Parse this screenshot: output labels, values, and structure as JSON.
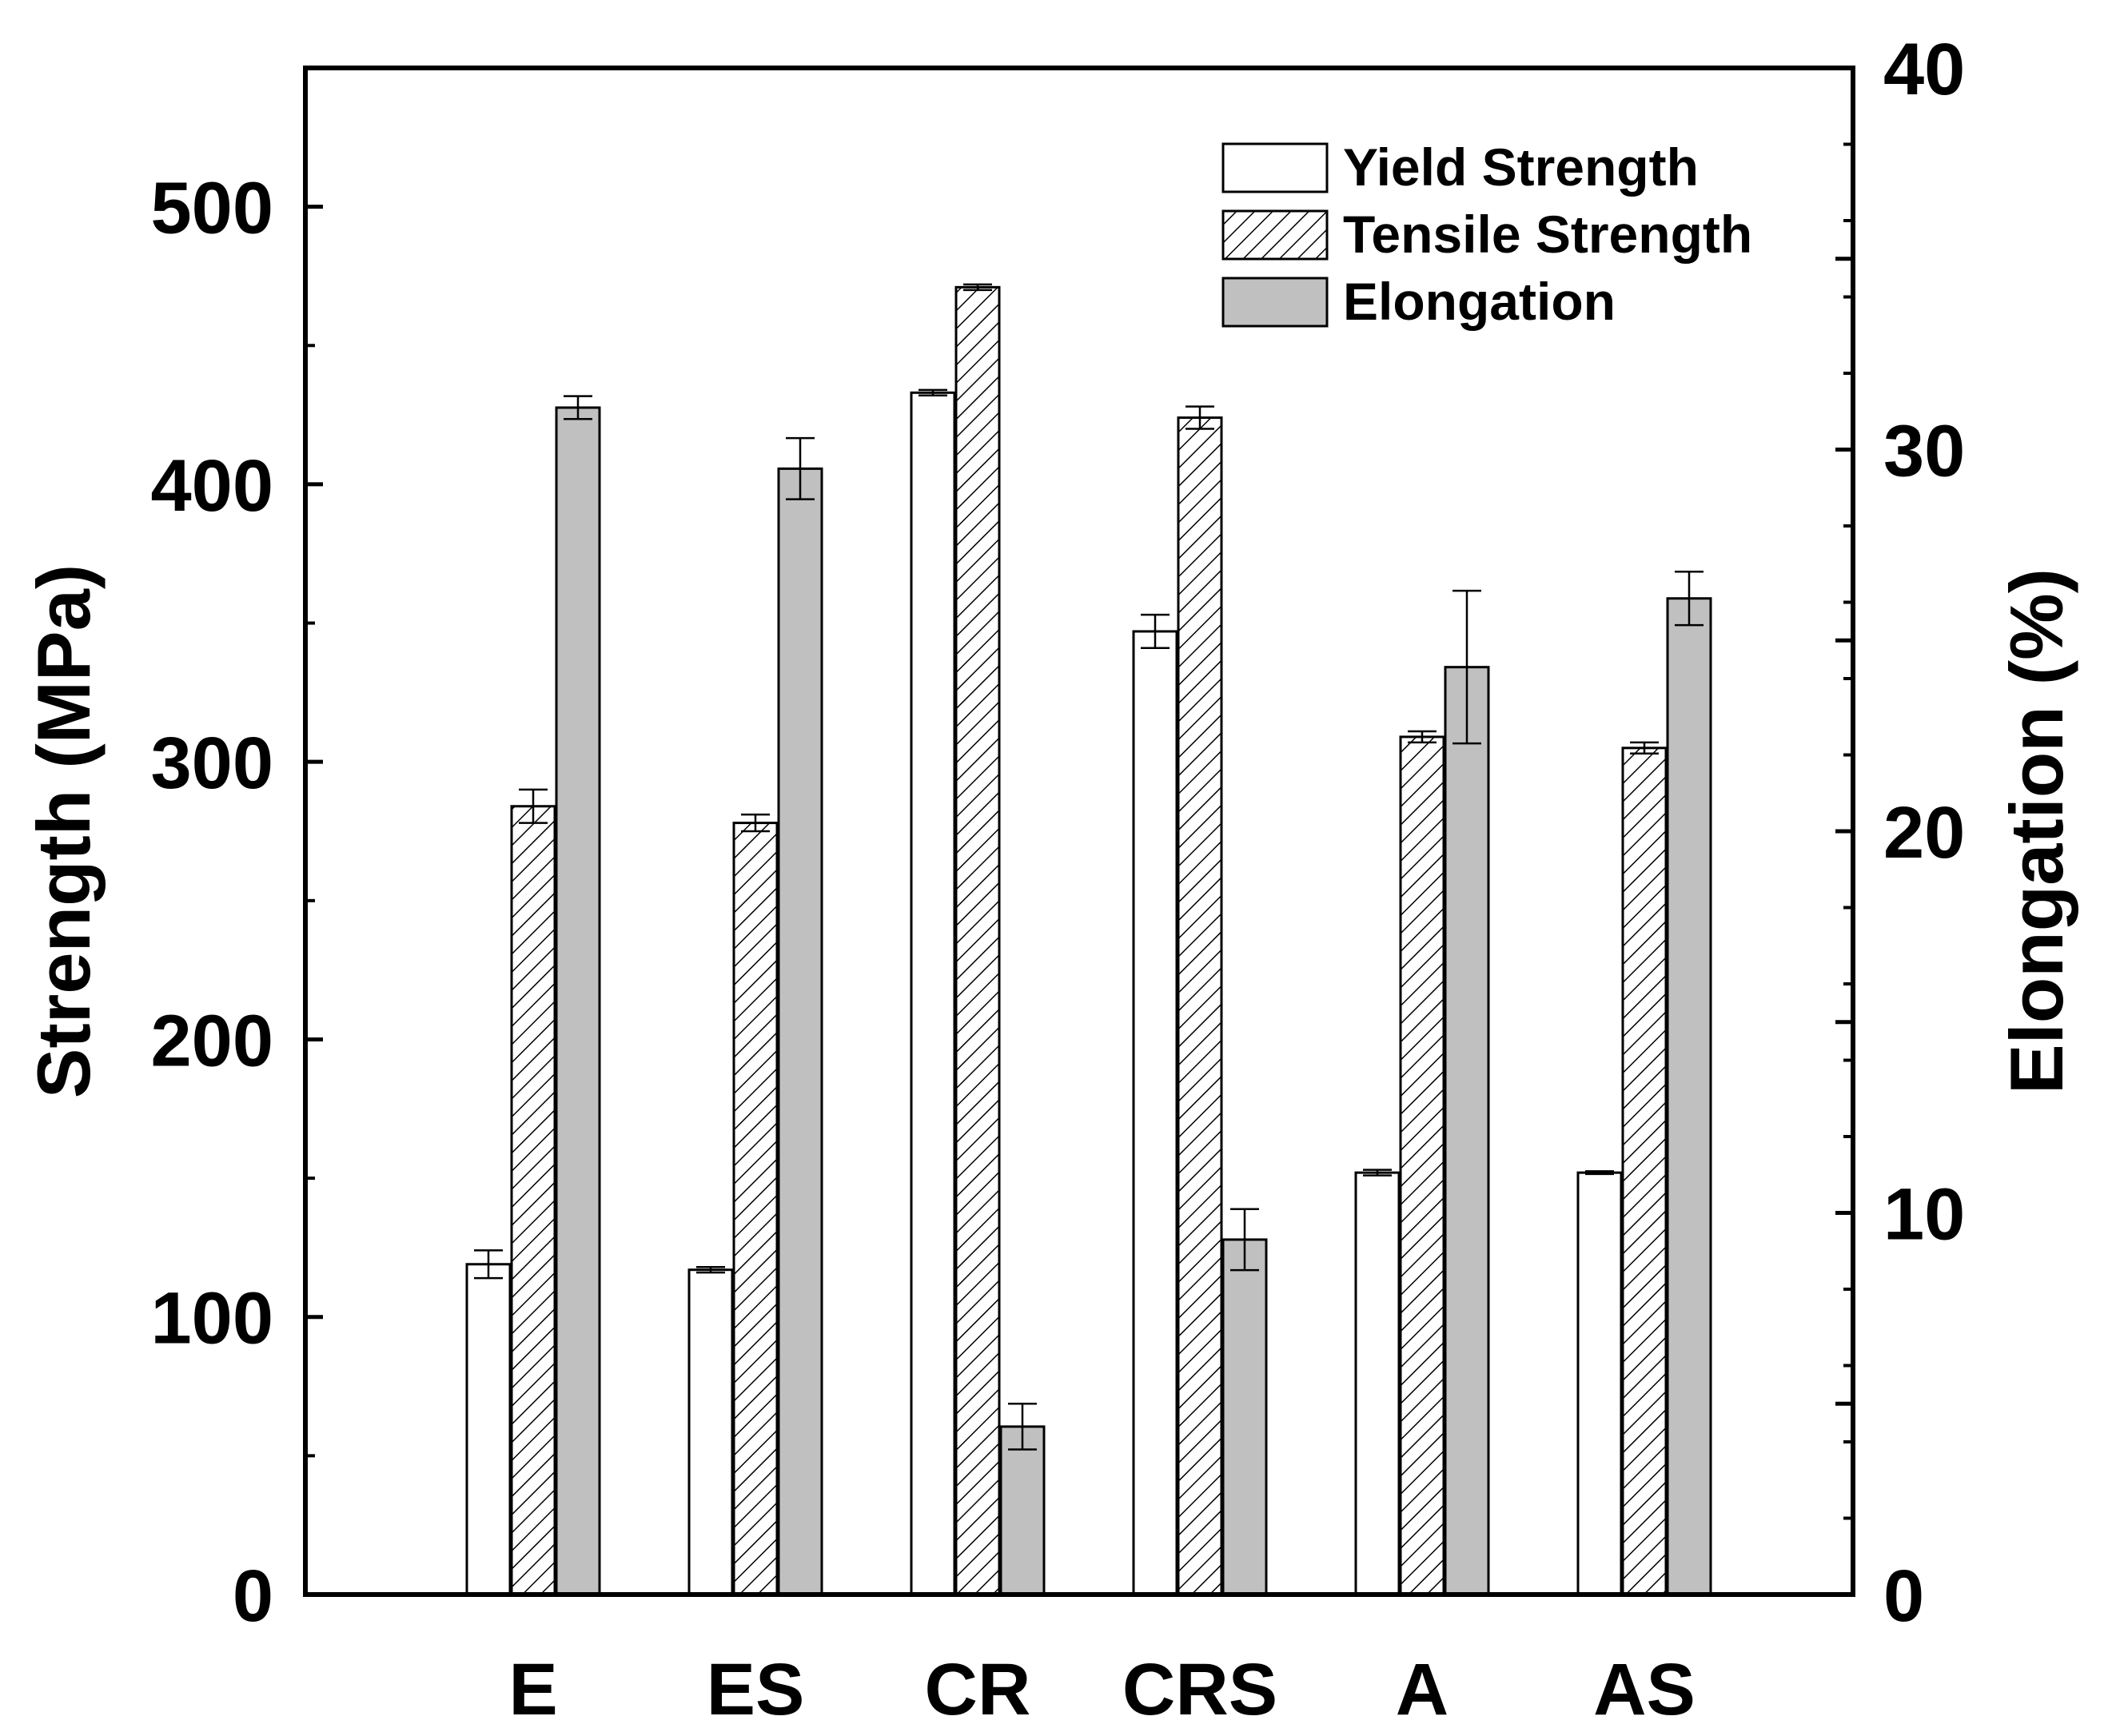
{
  "chart_data": {
    "type": "bar",
    "categories": [
      "E",
      "ES",
      "CR",
      "CRS",
      "A",
      "AS"
    ],
    "series": [
      {
        "name": "Yield Strength",
        "axis": "left",
        "fill": "#ffffff",
        "pattern": "none",
        "values": [
          119,
          117,
          433,
          347,
          152,
          152
        ],
        "errors": [
          5,
          1,
          1,
          6,
          1,
          0.5
        ]
      },
      {
        "name": "Tensile Strength",
        "axis": "left",
        "fill": "#ffffff",
        "pattern": "hatch",
        "values": [
          284,
          278,
          471,
          424,
          309,
          305
        ],
        "errors": [
          6,
          3,
          1,
          4,
          2,
          2
        ]
      },
      {
        "name": "Elongation",
        "axis": "right",
        "fill": "#c0c0c0",
        "pattern": "none",
        "values": [
          31.1,
          29.5,
          4.4,
          9.3,
          24.3,
          26.1
        ],
        "errors": [
          0.3,
          0.8,
          0.6,
          0.8,
          2.0,
          0.7
        ]
      }
    ],
    "left_axis": {
      "label": "Strength (MPa)",
      "ylim": [
        0,
        550
      ],
      "ticks": [
        "0",
        "100",
        "200",
        "300",
        "400",
        "500"
      ]
    },
    "right_axis": {
      "label": "Elongation (%)",
      "ylim": [
        0,
        40
      ],
      "ticks": [
        "0",
        "10",
        "20",
        "30",
        "40"
      ]
    },
    "xlabel": "",
    "grid": false,
    "legend": "top-right"
  }
}
